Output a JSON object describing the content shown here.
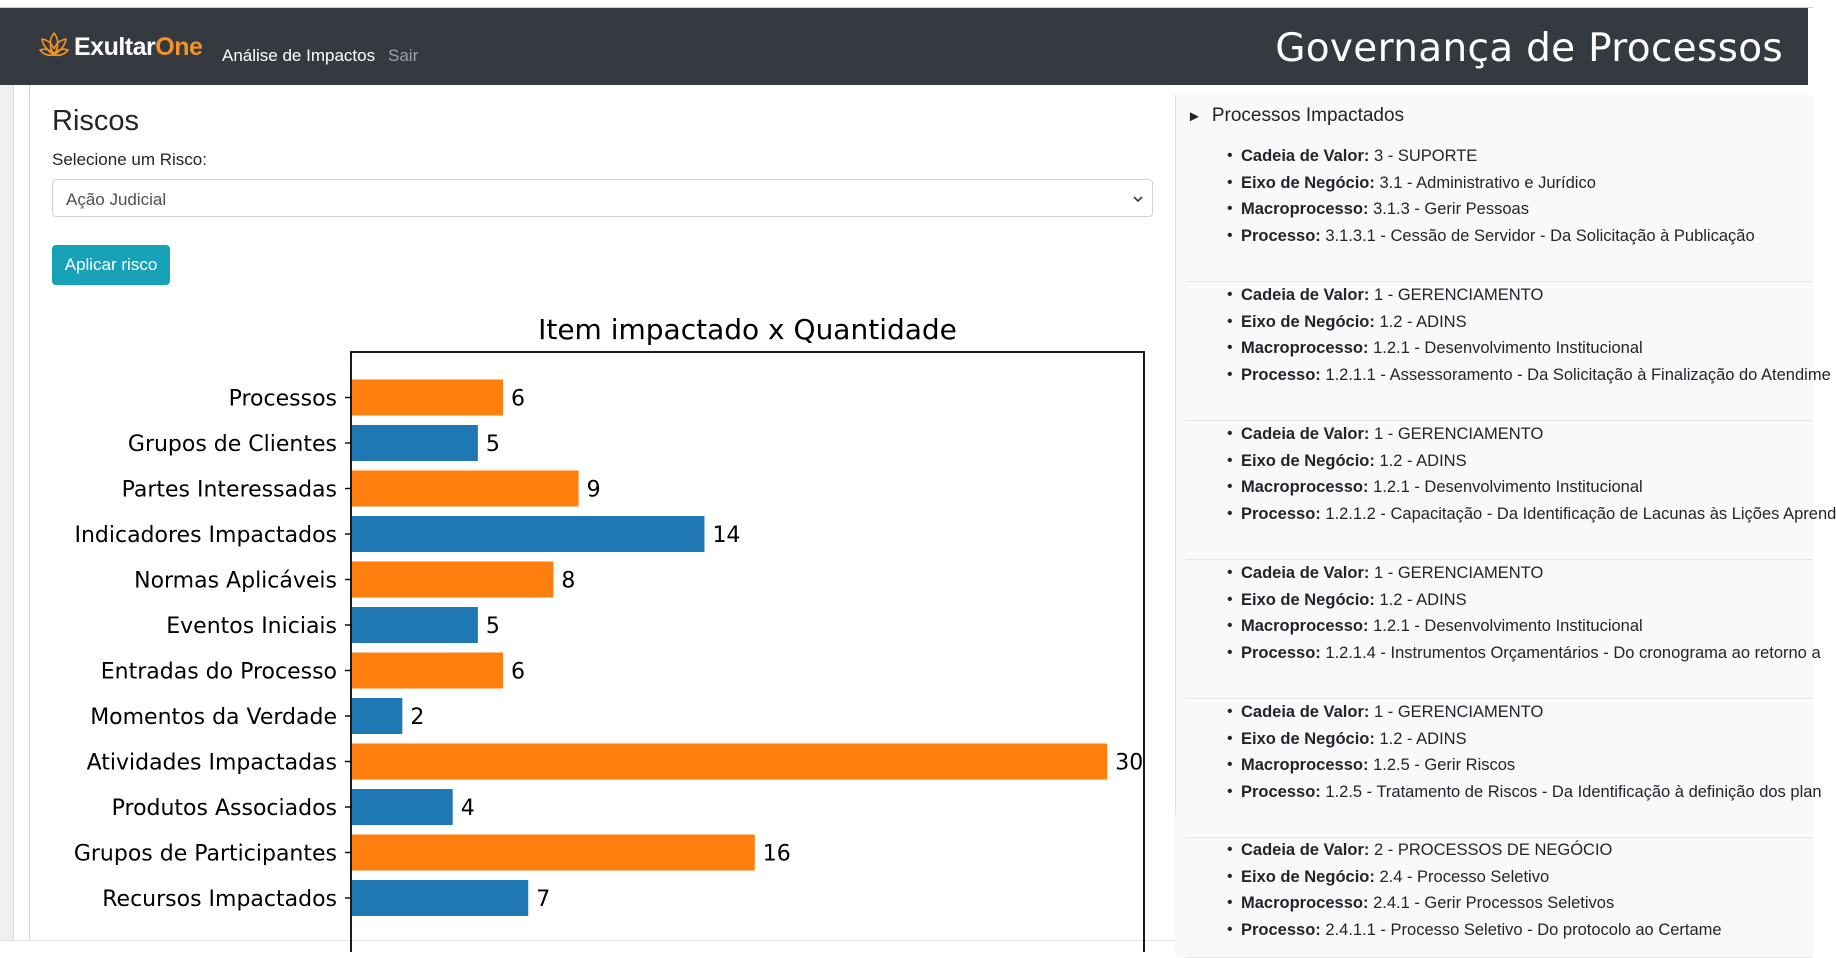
{
  "navbar": {
    "brand_first": "Exultar",
    "brand_second": "One",
    "links": [
      "Análise de Impactos",
      "Sair"
    ],
    "title": "Governança de Processos"
  },
  "main": {
    "heading": "Riscos",
    "select_label": "Selecione um Risco:",
    "select_value": "Ação Judicial",
    "apply_button": "Aplicar risco"
  },
  "chart_data": {
    "type": "bar",
    "orientation": "horizontal",
    "title": "Item impactado x Quantidade",
    "categories": [
      "Processos",
      "Grupos de Clientes",
      "Partes Interessadas",
      "Indicadores Impactados",
      "Normas Aplicáveis",
      "Eventos Iniciais",
      "Entradas do Processo",
      "Momentos da Verdade",
      "Atividades Impactadas",
      "Produtos Associados",
      "Grupos de Participantes",
      "Recursos Impactados"
    ],
    "values": [
      6,
      5,
      9,
      14,
      8,
      5,
      6,
      2,
      30,
      4,
      16,
      7
    ],
    "colors": [
      "#ff7f0e",
      "#1f77b4"
    ],
    "xlim": [
      0,
      31.5
    ]
  },
  "right_panel": {
    "summary": "Processos Impactados",
    "labels": {
      "cadeia": "Cadeia de Valor:",
      "eixo": "Eixo de Negócio:",
      "macro": "Macroprocesso:",
      "processo": "Processo:"
    },
    "cards": [
      {
        "cadeia": "3 - SUPORTE",
        "eixo": "3.1 - Administrativo e Jurídico",
        "macro": "3.1.3 - Gerir Pessoas",
        "processo": "3.1.3.1 - Cessão de Servidor - Da Solicitação à Publicação"
      },
      {
        "cadeia": "1 - GERENCIAMENTO",
        "eixo": "1.2 - ADINS",
        "macro": "1.2.1 - Desenvolvimento Institucional",
        "processo": "1.2.1.1 - Assessoramento - Da Solicitação à Finalização do Atendime"
      },
      {
        "cadeia": "1 - GERENCIAMENTO",
        "eixo": "1.2 - ADINS",
        "macro": "1.2.1 - Desenvolvimento Institucional",
        "processo": "1.2.1.2 - Capacitação - Da Identificação de Lacunas às Lições Aprend"
      },
      {
        "cadeia": "1 - GERENCIAMENTO",
        "eixo": "1.2 - ADINS",
        "macro": "1.2.1 - Desenvolvimento Institucional",
        "processo": "1.2.1.4 - Instrumentos Orçamentários - Do cronograma ao retorno a"
      },
      {
        "cadeia": "1 - GERENCIAMENTO",
        "eixo": "1.2 - ADINS",
        "macro": "1.2.5 - Gerir Riscos",
        "processo": "1.2.5 - Tratamento de Riscos - Da Identificação à definição dos plan"
      },
      {
        "cadeia": "2 - PROCESSOS DE NEGÓCIO",
        "eixo": "2.4 - Processo Seletivo",
        "macro": "2.4.1 - Gerir Processos Seletivos",
        "processo": "2.4.1.1 - Processo Seletivo - Do protocolo ao Certame"
      }
    ]
  }
}
